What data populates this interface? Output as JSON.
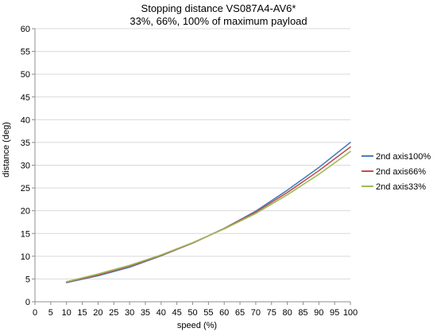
{
  "chart_data": {
    "type": "line",
    "title": "Stopping distance VS087A4-AV6*",
    "subtitle": "33%, 66%, 100% of maximum payload",
    "xlabel": "speed (%)",
    "ylabel": "distance (deg)",
    "xlim": [
      0,
      100
    ],
    "ylim": [
      0,
      60
    ],
    "x_ticks": [
      0,
      5,
      10,
      15,
      20,
      25,
      30,
      35,
      40,
      45,
      50,
      55,
      60,
      65,
      70,
      75,
      80,
      85,
      90,
      95,
      100
    ],
    "y_ticks": [
      0,
      5,
      10,
      15,
      20,
      25,
      30,
      35,
      40,
      45,
      50,
      55,
      60
    ],
    "grid": "horizontal",
    "legend_position": "right",
    "x": [
      10,
      20,
      30,
      40,
      50,
      60,
      70,
      80,
      90,
      100
    ],
    "series": [
      {
        "name": "2nd axis100%",
        "color": "#4a7ebb",
        "values": [
          4.2,
          5.7,
          7.6,
          10.1,
          12.9,
          16.1,
          19.9,
          24.5,
          29.5,
          35.0
        ]
      },
      {
        "name": "2nd axis66%",
        "color": "#c0504d",
        "values": [
          4.3,
          5.9,
          7.8,
          10.2,
          12.9,
          16.1,
          19.7,
          24.0,
          28.8,
          34.0
        ]
      },
      {
        "name": "2nd axis33%",
        "color": "#9bbb59",
        "values": [
          4.4,
          6.1,
          8.0,
          10.3,
          13.0,
          16.0,
          19.4,
          23.5,
          28.0,
          33.0
        ]
      }
    ]
  }
}
